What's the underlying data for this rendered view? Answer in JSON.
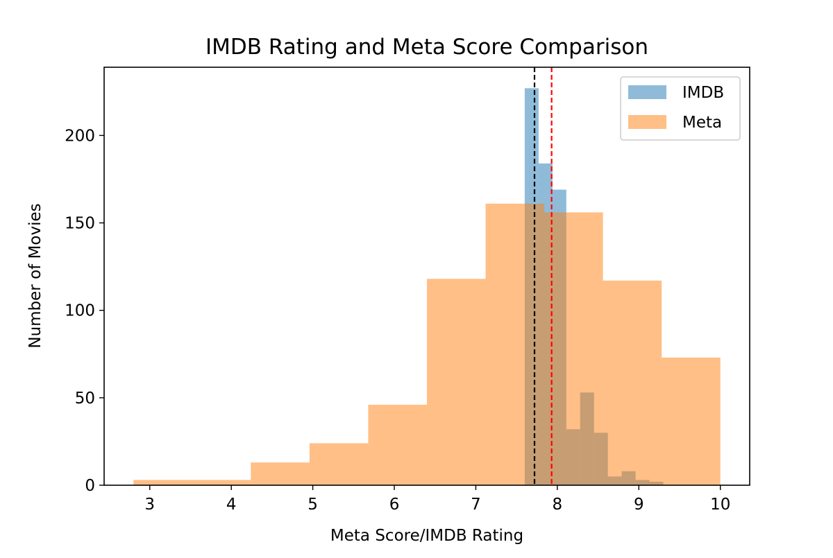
{
  "chart_data": {
    "type": "histogram",
    "title": "IMDB Rating and Meta Score Comparison",
    "xlabel": "Meta Score/IMDB Rating",
    "ylabel": "Number of Movies",
    "xlim": [
      2.44,
      10.36
    ],
    "ylim": [
      0,
      239
    ],
    "xticks": [
      3,
      4,
      5,
      6,
      7,
      8,
      9,
      10
    ],
    "yticks": [
      0,
      50,
      100,
      150,
      200
    ],
    "grid": false,
    "legend_position": "top-right",
    "series": [
      {
        "name": "IMDB",
        "color": "#1f77b4",
        "opacity": 0.5,
        "bins": [
          {
            "x0": 7.6,
            "x1": 7.77,
            "count": 227
          },
          {
            "x0": 7.77,
            "x1": 7.94,
            "count": 184
          },
          {
            "x0": 7.94,
            "x1": 8.11,
            "count": 169
          },
          {
            "x0": 8.11,
            "x1": 8.28,
            "count": 32
          },
          {
            "x0": 8.28,
            "x1": 8.45,
            "count": 53
          },
          {
            "x0": 8.45,
            "x1": 8.62,
            "count": 30
          },
          {
            "x0": 8.62,
            "x1": 8.79,
            "count": 5
          },
          {
            "x0": 8.79,
            "x1": 8.96,
            "count": 8
          },
          {
            "x0": 8.96,
            "x1": 9.13,
            "count": 3
          },
          {
            "x0": 9.13,
            "x1": 9.3,
            "count": 2
          }
        ]
      },
      {
        "name": "Meta",
        "color": "#ff7f0e",
        "opacity": 0.5,
        "bins": [
          {
            "x0": 2.8,
            "x1": 3.52,
            "count": 3
          },
          {
            "x0": 3.52,
            "x1": 4.24,
            "count": 3
          },
          {
            "x0": 4.24,
            "x1": 4.96,
            "count": 13
          },
          {
            "x0": 4.96,
            "x1": 5.68,
            "count": 24
          },
          {
            "x0": 5.68,
            "x1": 6.4,
            "count": 46
          },
          {
            "x0": 6.4,
            "x1": 7.12,
            "count": 118
          },
          {
            "x0": 7.12,
            "x1": 7.84,
            "count": 161
          },
          {
            "x0": 7.84,
            "x1": 8.56,
            "count": 156
          },
          {
            "x0": 8.56,
            "x1": 9.28,
            "count": 117
          },
          {
            "x0": 9.28,
            "x1": 10.0,
            "count": 73
          }
        ]
      }
    ],
    "reference_lines": [
      {
        "x": 7.72,
        "color": "#000000",
        "style": "dashed"
      },
      {
        "x": 7.93,
        "color": "#ff0000",
        "style": "dashed"
      }
    ]
  }
}
